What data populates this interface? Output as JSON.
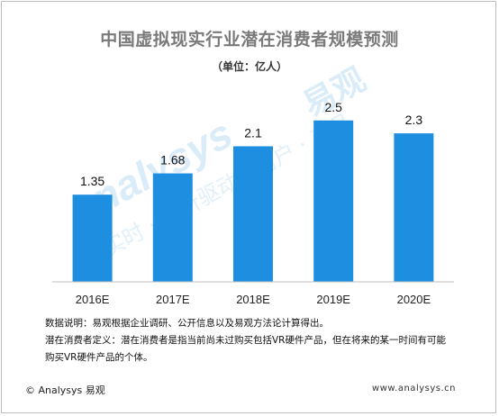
{
  "header": {
    "title": "中国虚拟现实行业潜在消费者规模预测",
    "unit": "（单位：亿人）"
  },
  "chart_data": {
    "type": "bar",
    "title": "中国虚拟现实行业潜在消费者规模预测",
    "ylabel": "",
    "xlabel": "",
    "categories": [
      "2016E",
      "2017E",
      "2018E",
      "2019E",
      "2020E"
    ],
    "values": [
      1.35,
      1.68,
      2.1,
      2.5,
      2.3
    ],
    "value_labels": [
      "1.35",
      "1.68",
      "2.1",
      "2.5",
      "2.3"
    ],
    "ylim": [
      0,
      2.65
    ],
    "grid": false,
    "bar_color": "#1e8fe0"
  },
  "notes": {
    "data_source": "数据说明：易观根据企业调研、公开信息以及易观方法论计算得出。",
    "definition_line1": "潜在消费者定义：潜在消费者是指当前尚未过购买包括VR硬件产品，但在将来的某一时间有可能",
    "definition_line2": "购买VR硬件产品的个体。"
  },
  "footer": {
    "copyright": "© Analysys 易观",
    "website": "www.analysys.cn"
  },
  "watermark": {
    "text_latin": "analysys",
    "text_cn_brand": "易观",
    "text_cn_slogan": "实时 · 分析驱动 · 用户 · 产品",
    "color": "#cfe6f7"
  }
}
